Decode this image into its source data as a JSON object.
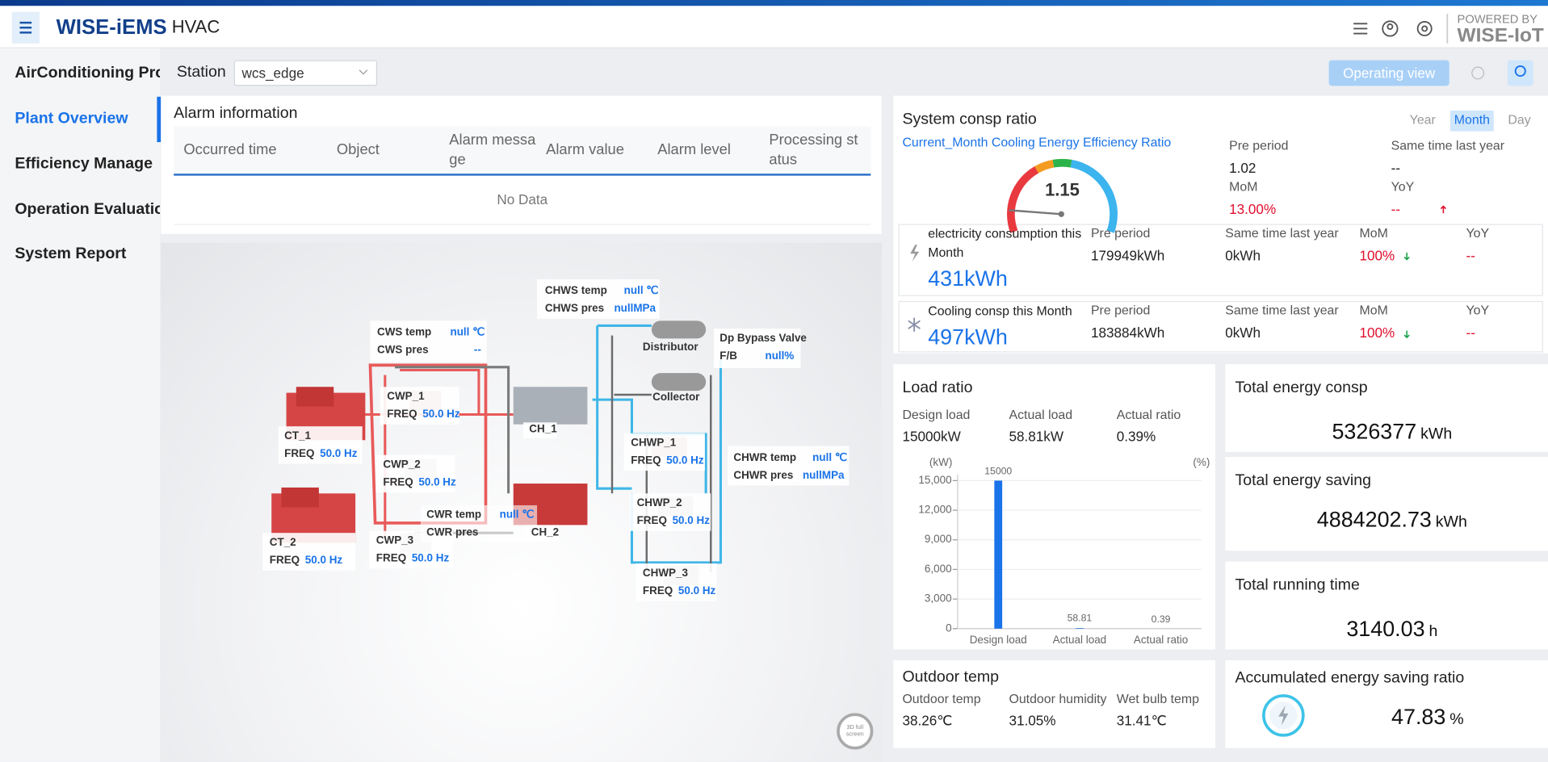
{
  "header": {
    "logo": "WISE-iEMS",
    "app": "HVAC",
    "powered_by": "POWERED BY",
    "brand": "WISE-IoT"
  },
  "sidebar": {
    "items": [
      "AirConditioning Pro",
      "Plant Overview",
      "Efficiency Manage",
      "Operation Evaluatio",
      "System Report"
    ],
    "active": 1
  },
  "toolbar": {
    "station_label": "Station",
    "station_value": "wcs_edge",
    "button": "Operating view"
  },
  "alarm": {
    "title": "Alarm information",
    "columns": [
      "Occurred time",
      "Object",
      "Alarm message",
      "Alarm value",
      "Alarm level",
      "Processing status"
    ],
    "empty": "No Data"
  },
  "plant": {
    "fullscreen": "3D full screen",
    "tags": [
      {
        "name": "CHWS temp",
        "value": "null ℃"
      },
      {
        "name": "CHWS pres",
        "value": "nullMPa"
      },
      {
        "name": "CWS temp",
        "value": "null ℃"
      },
      {
        "name": "CWS pres",
        "value": "--"
      },
      {
        "name": "Dp Bypass Valve"
      },
      {
        "name": "F/B",
        "value": "null%"
      },
      {
        "name": "CWP_1"
      },
      {
        "name": "FREQ",
        "value": "50.0 Hz"
      },
      {
        "name": "CT_1"
      },
      {
        "name": "FREQ",
        "value": "50.0 Hz"
      },
      {
        "name": "CH_1"
      },
      {
        "name": "Distributor"
      },
      {
        "name": "Collector"
      },
      {
        "name": "CHWP_1"
      },
      {
        "name": "FREQ",
        "value": "50.0 Hz"
      },
      {
        "name": "CHWR temp",
        "value": "null ℃"
      },
      {
        "name": "CHWR pres",
        "value": "nullMPa"
      },
      {
        "name": "CWP_2"
      },
      {
        "name": "FREQ",
        "value": "50.0 Hz"
      },
      {
        "name": "CWR temp",
        "value": "null ℃"
      },
      {
        "name": "CWR pres"
      },
      {
        "name": "CH_2"
      },
      {
        "name": "CHWP_2"
      },
      {
        "name": "FREQ",
        "value": "50.0 Hz"
      },
      {
        "name": "CT_2"
      },
      {
        "name": "FREQ",
        "value": "50.0 Hz"
      },
      {
        "name": "CWP_3"
      },
      {
        "name": "FREQ",
        "value": "50.0 Hz"
      },
      {
        "name": "CHWP_3"
      },
      {
        "name": "FREQ",
        "value": "50.0 Hz"
      }
    ]
  },
  "labels": {
    "pre_period": "Pre period",
    "same_time": "Same time last year",
    "mom": "MoM",
    "yoy": "YoY"
  },
  "system_ratio": {
    "title": "System consp ratio",
    "tabs": [
      "Year",
      "Month",
      "Day"
    ],
    "active_tab": 1,
    "subtitle": "Current_Month Cooling Energy Efficiency Ratio",
    "gauge_value": "1.15",
    "pre_period": "1.02",
    "same_time": "--",
    "mom": "13.00%",
    "yoy": "--"
  },
  "rows": [
    {
      "label": "electricity consumption this Month",
      "value": "431kWh",
      "pre_period": "179949kWh",
      "same_time": "0kWh",
      "mom": "100%",
      "yoy": "--"
    },
    {
      "label": "Cooling consp this Month",
      "value": "497kWh",
      "pre_period": "183884kWh",
      "same_time": "0kWh",
      "mom": "100%",
      "yoy": "--"
    }
  ],
  "load_ratio": {
    "title": "Load ratio",
    "metrics": [
      {
        "label": "Design load",
        "value": "15000kW"
      },
      {
        "label": "Actual load",
        "value": "58.81kW"
      },
      {
        "label": "Actual ratio",
        "value": "0.39%"
      }
    ],
    "chart": {
      "type": "bar",
      "y_unit": "(kW)",
      "y2_unit": "(%)",
      "categories": [
        "Design load",
        "Actual load",
        "Actual ratio"
      ],
      "values": [
        15000,
        58.81,
        0.39
      ],
      "color": "#1a73e8",
      "ylim": [
        0,
        15000
      ],
      "yticks": [
        0,
        {
          "value": 3000,
          "label": "3,000"
        },
        {
          "value": 6000,
          "label": "6,000"
        },
        {
          "value": 9000,
          "label": "9,000"
        },
        {
          "value": 12000,
          "label": "12,000"
        },
        {
          "value": 15000,
          "label": "15,000"
        }
      ],
      "grid": true
    }
  },
  "outdoor": {
    "title": "Outdoor temp",
    "metrics": [
      {
        "label": "Outdoor temp",
        "value": "38.26℃"
      },
      {
        "label": "Outdoor humidity",
        "value": "31.05%"
      },
      {
        "label": "Wet bulb temp",
        "value": "31.41℃"
      }
    ]
  },
  "totals": [
    {
      "title": "Total energy consp",
      "value": "5326377",
      "unit": "kWh"
    },
    {
      "title": "Total energy saving",
      "value": "4884202.73",
      "unit": "kWh"
    },
    {
      "title": "Total running time",
      "value": "3140.03",
      "unit": "h"
    },
    {
      "title": "Accumulated energy saving ratio",
      "value": "47.83",
      "unit": "%"
    }
  ]
}
